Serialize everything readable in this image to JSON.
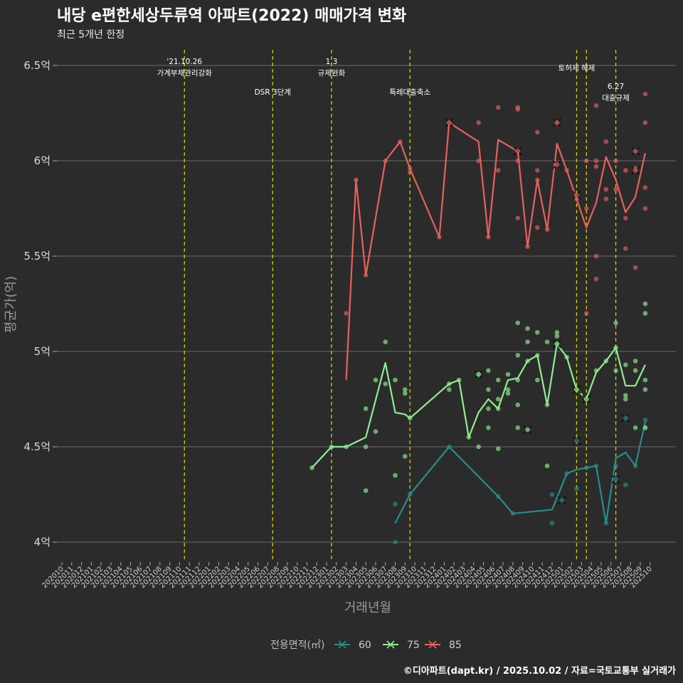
{
  "chart_data": {
    "type": "line",
    "title": "내당 e편한세상두류역 아파트(2022) 매매가격 변화",
    "subtitle": "최근 5개년 한정",
    "xlabel": "거래년월",
    "ylabel": "평균가(억)",
    "caption": "©디아파트(dapt.kr) / 2025.10.02 / 자료=국토교통부 실거래가",
    "ylim": [
      3.9,
      6.6
    ],
    "yticks": [
      4,
      4.5,
      5,
      5.5,
      6,
      6.5
    ],
    "ytick_labels": [
      "4억",
      "4.5억",
      "5억",
      "5.5억",
      "6억",
      "6.5억"
    ],
    "x_categories": [
      "202010",
      "202011",
      "202012",
      "202101",
      "202102",
      "202103",
      "202104",
      "202105",
      "202106",
      "202107",
      "202108",
      "202109",
      "202110",
      "202111",
      "202112",
      "202201",
      "202202",
      "202203",
      "202204",
      "202205",
      "202206",
      "202207",
      "202208",
      "202209",
      "202210",
      "202211",
      "202212",
      "202301",
      "202302",
      "202303",
      "202304",
      "202305",
      "202306",
      "202307",
      "202308",
      "202309",
      "202310",
      "202311",
      "202312",
      "202401",
      "202402",
      "202403",
      "202404",
      "202405",
      "202406",
      "202407",
      "202408",
      "202409",
      "202410",
      "202411",
      "202412",
      "202501",
      "202502",
      "202503",
      "202504",
      "202505",
      "202506",
      "202507",
      "202508",
      "202509",
      "202510"
    ],
    "events": [
      {
        "x": 12.5,
        "lines": [
          "'21.10.26",
          "가계부채관리강화"
        ]
      },
      {
        "x": 21.5,
        "lines": [
          "DSR 3단계"
        ]
      },
      {
        "x": 27.5,
        "lines": [
          "1.3",
          "규제완화"
        ]
      },
      {
        "x": 35.5,
        "lines": [
          "특례대출축소"
        ]
      },
      {
        "x": 52.5,
        "lines": [
          "토허제 해제"
        ]
      },
      {
        "x": 53.5,
        "lines": []
      },
      {
        "x": 56.5,
        "lines": [
          "6.27",
          "대출규제"
        ]
      }
    ],
    "legend_title": "전용면적(㎡)",
    "series": [
      {
        "name": "60",
        "color": "#2a8c8c",
        "line": [
          [
            34,
            4.1
          ],
          [
            35.5,
            4.25
          ],
          [
            39.5,
            4.5
          ],
          [
            44.5,
            4.24
          ],
          [
            46,
            4.15
          ],
          [
            50,
            4.17
          ],
          [
            51.5,
            4.36
          ],
          [
            52.5,
            4.38
          ],
          [
            53.5,
            4.39
          ],
          [
            54.5,
            4.4
          ],
          [
            55.5,
            4.1
          ],
          [
            56.5,
            4.44
          ],
          [
            57.5,
            4.47
          ],
          [
            58.5,
            4.4
          ],
          [
            59.5,
            4.63
          ]
        ],
        "points": [
          [
            34,
            4.2
          ],
          [
            34,
            4.0
          ],
          [
            35.5,
            4.25
          ],
          [
            39.5,
            4.5
          ],
          [
            44.5,
            4.24
          ],
          [
            46,
            4.15
          ],
          [
            50,
            4.25
          ],
          [
            50,
            4.1
          ],
          [
            51.5,
            4.36
          ],
          [
            52.5,
            4.28
          ],
          [
            53.5,
            4.39
          ],
          [
            54.5,
            4.4
          ],
          [
            55.5,
            4.1
          ],
          [
            56.5,
            4.4
          ],
          [
            57.5,
            4.3
          ],
          [
            58.5,
            4.4
          ],
          [
            59.5,
            4.6
          ],
          [
            59.5,
            4.64
          ]
        ],
        "crosses": [
          [
            51,
            4.22
          ],
          [
            52.5,
            4.53
          ],
          [
            56.5,
            4.33
          ],
          [
            57.5,
            4.65
          ]
        ]
      },
      {
        "name": "75",
        "color": "#90ee90",
        "line": [
          [
            25.5,
            4.39
          ],
          [
            27.5,
            4.5
          ],
          [
            29,
            4.5
          ],
          [
            31,
            4.55
          ],
          [
            33,
            4.94
          ],
          [
            34,
            4.68
          ],
          [
            35,
            4.67
          ],
          [
            35.5,
            4.65
          ],
          [
            39.5,
            4.83
          ],
          [
            40.5,
            4.85
          ],
          [
            41.5,
            4.55
          ],
          [
            42.5,
            4.68
          ],
          [
            43.5,
            4.75
          ],
          [
            44.5,
            4.7
          ],
          [
            45.5,
            4.85
          ],
          [
            46.5,
            4.86
          ],
          [
            47.5,
            4.95
          ],
          [
            48.5,
            4.98
          ],
          [
            49.5,
            4.72
          ],
          [
            50.5,
            5.04
          ],
          [
            51.5,
            4.97
          ],
          [
            52.5,
            4.8
          ],
          [
            53.5,
            4.75
          ],
          [
            54.5,
            4.89
          ],
          [
            55.5,
            4.95
          ],
          [
            56.5,
            5.02
          ],
          [
            57.5,
            4.82
          ],
          [
            58.5,
            4.82
          ],
          [
            59.5,
            4.93
          ]
        ],
        "points": [
          [
            25.5,
            4.39
          ],
          [
            27.5,
            4.5
          ],
          [
            29,
            4.5
          ],
          [
            31,
            4.7
          ],
          [
            31,
            4.5
          ],
          [
            31,
            4.27
          ],
          [
            32,
            4.85
          ],
          [
            32,
            4.58
          ],
          [
            33,
            5.05
          ],
          [
            33,
            4.83
          ],
          [
            34,
            4.85
          ],
          [
            34,
            4.35
          ],
          [
            35,
            4.8
          ],
          [
            35,
            4.78
          ],
          [
            35,
            4.45
          ],
          [
            35.5,
            4.65
          ],
          [
            39.5,
            4.83
          ],
          [
            39.5,
            4.8
          ],
          [
            40.5,
            4.85
          ],
          [
            41.5,
            4.55
          ],
          [
            42.5,
            4.88
          ],
          [
            42.5,
            4.5
          ],
          [
            43.5,
            4.9
          ],
          [
            43.5,
            4.8
          ],
          [
            43.5,
            4.7
          ],
          [
            43.5,
            4.6
          ],
          [
            44.5,
            4.85
          ],
          [
            44.5,
            4.75
          ],
          [
            44.5,
            4.7
          ],
          [
            44.5,
            4.49
          ],
          [
            45.5,
            4.88
          ],
          [
            45.5,
            4.8
          ],
          [
            45.5,
            4.78
          ],
          [
            46.5,
            5.15
          ],
          [
            46.5,
            4.98
          ],
          [
            46.5,
            4.85
          ],
          [
            46.5,
            4.72
          ],
          [
            46.5,
            4.6
          ],
          [
            47.5,
            5.12
          ],
          [
            47.5,
            5.05
          ],
          [
            47.5,
            4.95
          ],
          [
            48.5,
            5.1
          ],
          [
            48.5,
            4.98
          ],
          [
            48.5,
            4.85
          ],
          [
            49.5,
            5.05
          ],
          [
            49.5,
            4.72
          ],
          [
            49.5,
            4.4
          ],
          [
            50.5,
            5.1
          ],
          [
            50.5,
            5.08
          ],
          [
            50.5,
            5.04
          ],
          [
            51.5,
            4.97
          ],
          [
            52.5,
            4.8
          ],
          [
            53.5,
            4.75
          ],
          [
            54.5,
            4.9
          ],
          [
            55.5,
            4.95
          ],
          [
            56.5,
            5.15
          ],
          [
            56.5,
            5.02
          ],
          [
            56.5,
            4.9
          ],
          [
            57.5,
            4.93
          ],
          [
            57.5,
            4.77
          ],
          [
            57.5,
            4.75
          ],
          [
            58.5,
            4.95
          ],
          [
            58.5,
            4.9
          ],
          [
            58.5,
            4.6
          ],
          [
            59.5,
            5.25
          ],
          [
            59.5,
            5.2
          ],
          [
            59.5,
            4.85
          ],
          [
            59.5,
            4.8
          ],
          [
            59.5,
            4.6
          ]
        ],
        "crosses": [
          [
            42.5,
            4.88
          ],
          [
            47.5,
            4.59
          ],
          [
            50.5,
            5.04
          ],
          [
            52.5,
            4.8
          ],
          [
            53.5,
            4.75
          ]
        ]
      },
      {
        "name": "85",
        "color": "#e8605c",
        "line": [
          [
            29,
            4.85
          ],
          [
            30,
            5.9
          ],
          [
            31,
            5.4
          ],
          [
            33,
            6.0
          ],
          [
            34.5,
            6.1
          ],
          [
            35.5,
            5.96
          ],
          [
            38.5,
            5.6
          ],
          [
            39.5,
            6.2
          ],
          [
            42.5,
            6.1
          ],
          [
            43.5,
            5.6
          ],
          [
            44.5,
            6.11
          ],
          [
            45.5,
            6.08
          ],
          [
            46.5,
            6.05
          ],
          [
            47.5,
            5.55
          ],
          [
            48.5,
            5.9
          ],
          [
            49.5,
            5.64
          ],
          [
            50.5,
            6.09
          ],
          [
            51.5,
            5.95
          ],
          [
            52.5,
            5.8
          ],
          [
            53.5,
            5.65
          ],
          [
            54.5,
            5.78
          ],
          [
            55.5,
            6.02
          ],
          [
            56.5,
            5.9
          ],
          [
            57.5,
            5.73
          ],
          [
            58.5,
            5.81
          ],
          [
            59.5,
            6.04
          ]
        ],
        "points": [
          [
            29,
            5.2
          ],
          [
            30,
            5.9
          ],
          [
            31,
            5.4
          ],
          [
            33,
            6.0
          ],
          [
            34.5,
            6.1
          ],
          [
            35.5,
            5.96
          ],
          [
            35.5,
            5.94
          ],
          [
            38.5,
            5.6
          ],
          [
            39.5,
            6.2
          ],
          [
            42.5,
            6.2
          ],
          [
            42.5,
            6.0
          ],
          [
            43.5,
            5.6
          ],
          [
            44.5,
            6.28
          ],
          [
            44.5,
            5.95
          ],
          [
            46.5,
            6.28
          ],
          [
            46.5,
            6.27
          ],
          [
            46.5,
            6.0
          ],
          [
            46.5,
            5.7
          ],
          [
            47.5,
            5.55
          ],
          [
            48.5,
            6.15
          ],
          [
            48.5,
            5.95
          ],
          [
            48.5,
            5.9
          ],
          [
            48.5,
            5.65
          ],
          [
            49.5,
            5.64
          ],
          [
            50.5,
            6.2
          ],
          [
            51.5,
            5.95
          ],
          [
            52.5,
            5.8
          ],
          [
            53.5,
            6.0
          ],
          [
            53.5,
            5.75
          ],
          [
            53.5,
            5.2
          ],
          [
            54.5,
            6.29
          ],
          [
            54.5,
            6.0
          ],
          [
            54.5,
            5.97
          ],
          [
            54.5,
            5.5
          ],
          [
            54.5,
            5.38
          ],
          [
            55.5,
            6.1
          ],
          [
            55.5,
            5.85
          ],
          [
            55.5,
            5.8
          ],
          [
            56.5,
            6.0
          ],
          [
            56.5,
            5.85
          ],
          [
            57.5,
            5.95
          ],
          [
            57.5,
            5.7
          ],
          [
            57.5,
            5.54
          ],
          [
            58.5,
            5.96
          ],
          [
            58.5,
            5.44
          ],
          [
            59.5,
            6.35
          ],
          [
            59.5,
            6.2
          ],
          [
            59.5,
            5.86
          ],
          [
            59.5,
            5.75
          ]
        ],
        "crosses": [
          [
            39.5,
            6.2
          ],
          [
            46.5,
            6.05
          ],
          [
            50.5,
            6.2
          ],
          [
            50.5,
            5.98
          ],
          [
            52.5,
            5.82
          ],
          [
            58.5,
            6.05
          ],
          [
            58.5,
            5.95
          ]
        ]
      }
    ]
  }
}
